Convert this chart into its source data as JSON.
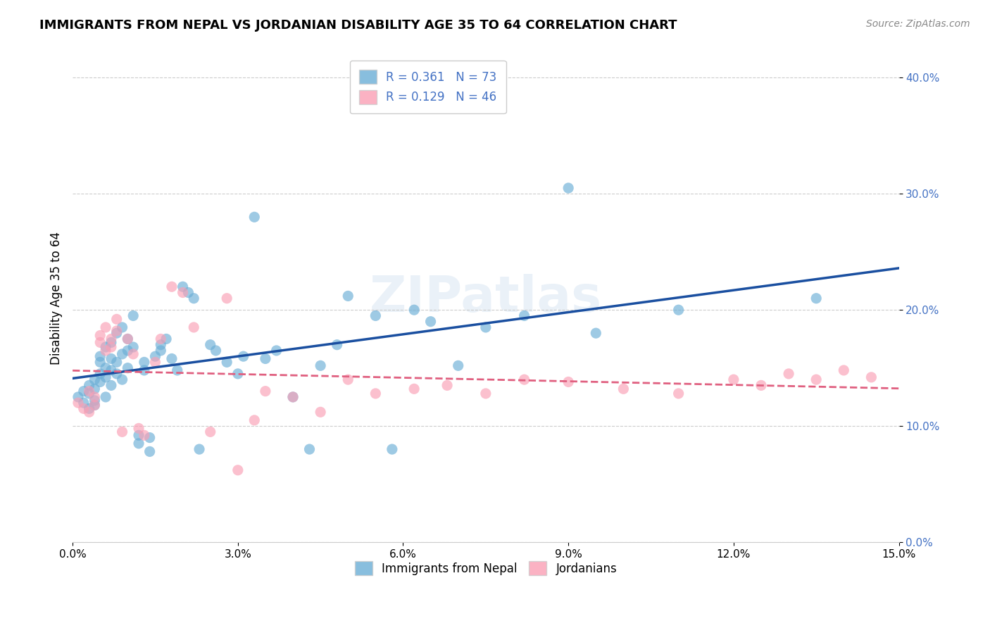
{
  "title": "IMMIGRANTS FROM NEPAL VS JORDANIAN DISABILITY AGE 35 TO 64 CORRELATION CHART",
  "source": "Source: ZipAtlas.com",
  "ylabel": "Disability Age 35 to 64",
  "xlabel": "",
  "xlim": [
    0.0,
    0.15
  ],
  "ylim": [
    0.0,
    0.42
  ],
  "xticks": [
    0.0,
    0.03,
    0.06,
    0.09,
    0.12,
    0.15
  ],
  "yticks": [
    0.0,
    0.1,
    0.2,
    0.3,
    0.4
  ],
  "nepal_R": 0.361,
  "nepal_N": 73,
  "jordan_R": 0.129,
  "jordan_N": 46,
  "nepal_color": "#6baed6",
  "jordan_color": "#fa9fb5",
  "nepal_line_color": "#1a4fa0",
  "jordan_line_color": "#e06080",
  "nepal_x": [
    0.001,
    0.002,
    0.002,
    0.003,
    0.003,
    0.003,
    0.004,
    0.004,
    0.004,
    0.004,
    0.005,
    0.005,
    0.005,
    0.005,
    0.006,
    0.006,
    0.006,
    0.006,
    0.007,
    0.007,
    0.007,
    0.007,
    0.008,
    0.008,
    0.008,
    0.009,
    0.009,
    0.009,
    0.01,
    0.01,
    0.01,
    0.011,
    0.011,
    0.012,
    0.012,
    0.013,
    0.013,
    0.014,
    0.014,
    0.015,
    0.016,
    0.016,
    0.017,
    0.018,
    0.019,
    0.02,
    0.021,
    0.022,
    0.023,
    0.025,
    0.026,
    0.028,
    0.03,
    0.031,
    0.033,
    0.035,
    0.037,
    0.04,
    0.043,
    0.045,
    0.048,
    0.05,
    0.055,
    0.058,
    0.062,
    0.065,
    0.07,
    0.075,
    0.082,
    0.09,
    0.095,
    0.11,
    0.135
  ],
  "nepal_y": [
    0.125,
    0.13,
    0.12,
    0.135,
    0.115,
    0.128,
    0.14,
    0.122,
    0.118,
    0.132,
    0.145,
    0.155,
    0.16,
    0.138,
    0.168,
    0.142,
    0.125,
    0.15,
    0.172,
    0.148,
    0.135,
    0.158,
    0.18,
    0.155,
    0.145,
    0.185,
    0.162,
    0.14,
    0.175,
    0.165,
    0.15,
    0.195,
    0.168,
    0.092,
    0.085,
    0.155,
    0.148,
    0.09,
    0.078,
    0.16,
    0.165,
    0.17,
    0.175,
    0.158,
    0.148,
    0.22,
    0.215,
    0.21,
    0.08,
    0.17,
    0.165,
    0.155,
    0.145,
    0.16,
    0.28,
    0.158,
    0.165,
    0.125,
    0.08,
    0.152,
    0.17,
    0.212,
    0.195,
    0.08,
    0.2,
    0.19,
    0.152,
    0.185,
    0.195,
    0.305,
    0.18,
    0.2,
    0.21
  ],
  "jordan_x": [
    0.001,
    0.002,
    0.003,
    0.003,
    0.004,
    0.004,
    0.005,
    0.005,
    0.006,
    0.006,
    0.007,
    0.007,
    0.008,
    0.008,
    0.009,
    0.01,
    0.011,
    0.012,
    0.013,
    0.015,
    0.016,
    0.018,
    0.02,
    0.022,
    0.025,
    0.028,
    0.03,
    0.033,
    0.035,
    0.04,
    0.045,
    0.05,
    0.055,
    0.062,
    0.068,
    0.075,
    0.082,
    0.09,
    0.1,
    0.11,
    0.12,
    0.125,
    0.13,
    0.135,
    0.14,
    0.145
  ],
  "jordan_y": [
    0.12,
    0.115,
    0.13,
    0.112,
    0.125,
    0.118,
    0.178,
    0.172,
    0.185,
    0.165,
    0.175,
    0.168,
    0.192,
    0.182,
    0.095,
    0.175,
    0.162,
    0.098,
    0.092,
    0.155,
    0.175,
    0.22,
    0.215,
    0.185,
    0.095,
    0.21,
    0.062,
    0.105,
    0.13,
    0.125,
    0.112,
    0.14,
    0.128,
    0.132,
    0.135,
    0.128,
    0.14,
    0.138,
    0.132,
    0.128,
    0.14,
    0.135,
    0.145,
    0.14,
    0.148,
    0.142
  ]
}
